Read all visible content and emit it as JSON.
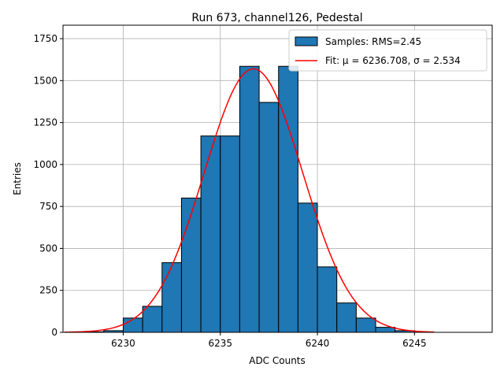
{
  "chart_data": {
    "type": "bar",
    "title": "Run 673, channel126, Pedestal",
    "xlabel": "ADC Counts",
    "ylabel": "Entries",
    "xlim": [
      6226.9,
      6249.0
    ],
    "ylim": [
      0,
      1830
    ],
    "xticks": [
      6230,
      6235,
      6240,
      6245
    ],
    "yticks": [
      0,
      250,
      500,
      750,
      1000,
      1250,
      1500,
      1750
    ],
    "grid": true,
    "legend_position": "top-right",
    "bin_width": 1,
    "bins": [
      {
        "left": 6227,
        "value": 2
      },
      {
        "left": 6228,
        "value": 3
      },
      {
        "left": 6229,
        "value": 10
      },
      {
        "left": 6230,
        "value": 85
      },
      {
        "left": 6231,
        "value": 155
      },
      {
        "left": 6232,
        "value": 415
      },
      {
        "left": 6233,
        "value": 800
      },
      {
        "left": 6234,
        "value": 1170
      },
      {
        "left": 6235,
        "value": 1170
      },
      {
        "left": 6236,
        "value": 1585
      },
      {
        "left": 6237,
        "value": 1370
      },
      {
        "left": 6238,
        "value": 1585
      },
      {
        "left": 6239,
        "value": 770
      },
      {
        "left": 6240,
        "value": 390
      },
      {
        "left": 6241,
        "value": 175
      },
      {
        "left": 6242,
        "value": 85
      },
      {
        "left": 6243,
        "value": 30
      },
      {
        "left": 6244,
        "value": 10
      },
      {
        "left": 6245,
        "value": 2
      }
    ],
    "fit": {
      "mu": 6236.708,
      "sigma": 2.534,
      "amplitude": 1570,
      "x_range": [
        6227,
        6246
      ]
    },
    "series": [
      {
        "name": "Samples: RMS=2.45",
        "color": "#1f77b4",
        "kind": "histogram"
      },
      {
        "name": "Fit: μ = 6236.708, σ = 2.534",
        "color": "#ff0000",
        "kind": "line"
      }
    ]
  }
}
